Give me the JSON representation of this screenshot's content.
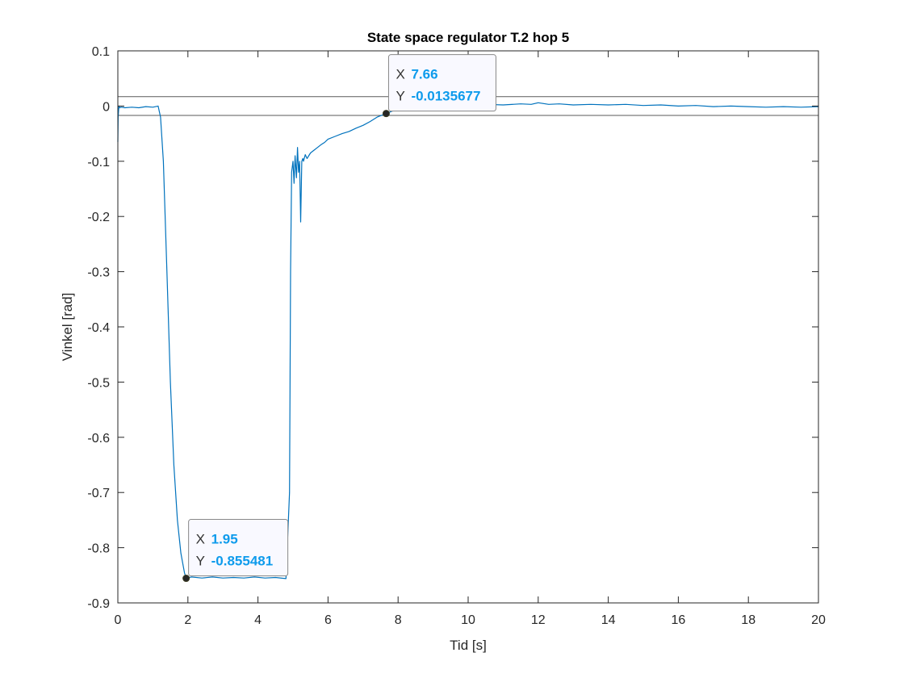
{
  "chart_data": {
    "type": "line",
    "title": "State space regulator T.2 hop 5",
    "xlabel": "Tid [s]",
    "ylabel": "Vinkel [rad]",
    "xlim": [
      0,
      20
    ],
    "ylim": [
      -0.9,
      0.1
    ],
    "xticks": [
      0,
      2,
      4,
      6,
      8,
      10,
      12,
      14,
      16,
      18,
      20
    ],
    "yticks": [
      0.1,
      0,
      -0.1,
      -0.2,
      -0.3,
      -0.4,
      -0.5,
      -0.6,
      -0.7,
      -0.8,
      -0.9
    ],
    "xtick_labels": [
      "0",
      "2",
      "4",
      "6",
      "8",
      "10",
      "12",
      "14",
      "16",
      "18",
      "20"
    ],
    "ytick_labels": [
      "0.1",
      "0",
      "-0.1",
      "-0.2",
      "-0.3",
      "-0.4",
      "-0.5",
      "-0.6",
      "-0.7",
      "-0.8",
      "-0.9"
    ],
    "grid": false,
    "reference_lines": [
      0.017,
      -0.017
    ],
    "series": [
      {
        "color": "#0072BD",
        "x": [
          0,
          0.01,
          0.03,
          0.05,
          0.1,
          0.2,
          0.4,
          0.6,
          0.8,
          1.0,
          1.15,
          1.22,
          1.3,
          1.4,
          1.5,
          1.6,
          1.7,
          1.8,
          1.9,
          1.95,
          2.1,
          2.4,
          2.7,
          3.0,
          3.3,
          3.6,
          3.9,
          4.2,
          4.5,
          4.8,
          4.9,
          4.93,
          4.96,
          5.0,
          5.03,
          5.06,
          5.1,
          5.13,
          5.16,
          5.19,
          5.22,
          5.25,
          5.28,
          5.3,
          5.35,
          5.4,
          5.5,
          5.6,
          5.7,
          5.8,
          5.9,
          6.0,
          6.2,
          6.4,
          6.6,
          6.8,
          7.0,
          7.2,
          7.4,
          7.66,
          8.0,
          8.5,
          9.0,
          9.5,
          10.0,
          10.5,
          11.0,
          11.5,
          11.8,
          12.0,
          12.3,
          12.6,
          13.0,
          13.5,
          14.0,
          14.5,
          15.0,
          15.5,
          16.0,
          16.5,
          17.0,
          17.5,
          18.0,
          18.5,
          19.0,
          19.5,
          20.0
        ],
        "y": [
          -0.065,
          -0.02,
          0.0,
          -0.003,
          -0.002,
          -0.003,
          -0.002,
          -0.003,
          -0.001,
          -0.002,
          0.0,
          -0.02,
          -0.1,
          -0.3,
          -0.5,
          -0.65,
          -0.75,
          -0.81,
          -0.845,
          -0.855481,
          -0.853,
          -0.855,
          -0.853,
          -0.855,
          -0.854,
          -0.855,
          -0.853,
          -0.855,
          -0.854,
          -0.856,
          -0.7,
          -0.3,
          -0.12,
          -0.1,
          -0.14,
          -0.09,
          -0.13,
          -0.075,
          -0.12,
          -0.1,
          -0.21,
          -0.1,
          -0.095,
          -0.1,
          -0.088,
          -0.095,
          -0.085,
          -0.08,
          -0.075,
          -0.07,
          -0.066,
          -0.06,
          -0.055,
          -0.05,
          -0.046,
          -0.04,
          -0.035,
          -0.028,
          -0.02,
          -0.0135677,
          -0.005,
          -0.002,
          0.0,
          0.002,
          0.001,
          0.003,
          0.002,
          0.004,
          0.003,
          0.006,
          0.003,
          0.004,
          0.002,
          0.003,
          0.002,
          0.003,
          0.001,
          0.002,
          0.0,
          0.001,
          -0.001,
          0.0,
          -0.001,
          -0.002,
          -0.001,
          -0.002,
          -0.001
        ]
      }
    ],
    "datatips": [
      {
        "x": 1.95,
        "y": -0.855481,
        "x_label": "X",
        "y_label": "Y",
        "x_text": "1.95",
        "y_text": "-0.855481"
      },
      {
        "x": 7.66,
        "y": -0.0135677,
        "x_label": "X",
        "y_label": "Y",
        "x_text": "7.66",
        "y_text": "-0.0135677"
      }
    ]
  }
}
